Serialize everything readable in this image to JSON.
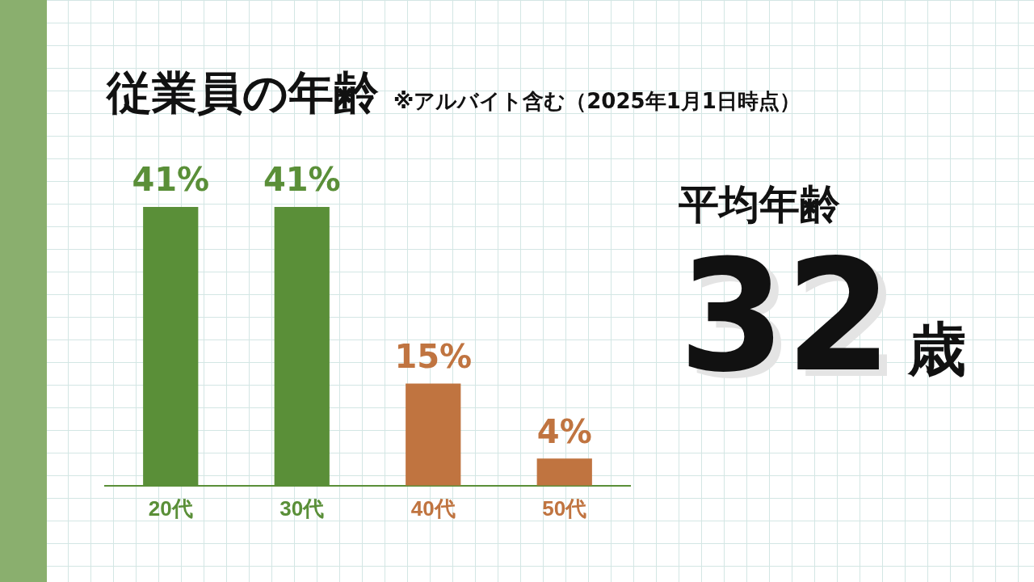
{
  "chart_data": [
    {
      "type": "bar",
      "title": "従業員の年齢",
      "subtitle": "※アルバイト含む（2025年1月1日時点）",
      "categories": [
        "20代",
        "30代",
        "40代",
        "50代"
      ],
      "values": [
        41,
        41,
        15,
        4
      ],
      "colors": [
        "#5a8f38",
        "#5a8f38",
        "#c07440",
        "#c07440"
      ],
      "value_labels": [
        "41%",
        "41%",
        "15%",
        "4%"
      ],
      "legend": false,
      "grid": false,
      "tick_labels": "x"
    },
    {
      "type": "other",
      "title": "平均年齢",
      "annotations": [
        "32",
        "歳"
      ]
    }
  ]
}
